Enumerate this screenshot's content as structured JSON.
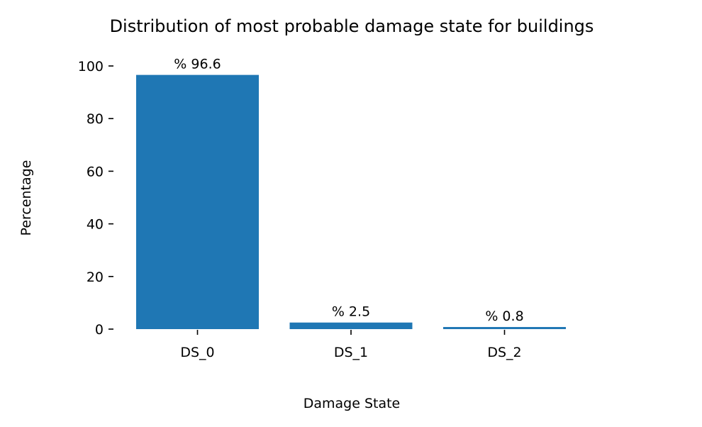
{
  "chart_data": {
    "type": "bar",
    "title": "Distribution of most probable damage state for buildings",
    "xlabel": "Damage State",
    "ylabel": "Percentage",
    "categories": [
      "DS_0",
      "DS_1",
      "DS_2"
    ],
    "values": [
      96.6,
      2.5,
      0.8
    ],
    "data_labels": [
      "% 96.6",
      "% 2.5",
      "% 0.8"
    ],
    "yticks": [
      0,
      20,
      40,
      60,
      80,
      100
    ],
    "ylim": [
      0,
      100
    ],
    "grid": false,
    "legend": "none",
    "bar_color": "#1f77b4"
  }
}
